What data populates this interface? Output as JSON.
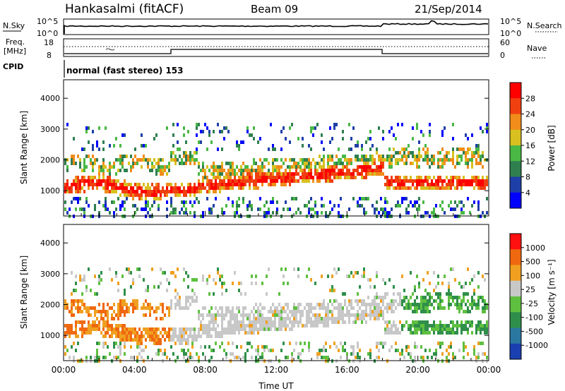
{
  "header": {
    "station": "Hankasalmi (fitACF)",
    "beam": "Beam 09",
    "date": "21/Sep/2014"
  },
  "noise_panel": {
    "left_label": "N.Sky",
    "right_label": "N.Search",
    "left_ticks": [
      "10^5",
      "10^0"
    ],
    "right_ticks": [
      "10^5",
      "10^0"
    ]
  },
  "freq_panel": {
    "left_label_1": "Freq.",
    "left_label_2": "[MHz]",
    "right_label": "Nave",
    "left_ticks": [
      "18",
      "8"
    ],
    "right_ticks": [
      "60",
      "0"
    ]
  },
  "cpid_panel": {
    "label": "CPID",
    "program": "normal (fast stereo) 153"
  },
  "chart_data": [
    {
      "type": "heatmap",
      "name": "power",
      "ylabel": "Slant Range [km]",
      "ylim": [
        180,
        4600
      ],
      "yticks": [
        "1000",
        "2000",
        "3000",
        "4000"
      ],
      "colorbar_label": "Power [dB]",
      "colorbar_ticks": [
        "28",
        "24",
        "20",
        "16",
        "12",
        "8",
        "4"
      ],
      "colors": [
        "#0000ff",
        "#1f3fa8",
        "#2f7f4f",
        "#49b845",
        "#d8c020",
        "#f08c1a",
        "#f04010",
        "#ff0000"
      ],
      "x_range_hours": [
        0,
        24
      ]
    },
    {
      "type": "heatmap",
      "name": "velocity",
      "ylabel": "Slant Range [km]",
      "ylim": [
        180,
        4600
      ],
      "yticks": [
        "1000",
        "2000",
        "3000",
        "4000"
      ],
      "xlabel": "Time UT",
      "xticks": [
        "00:00",
        "04:00",
        "08:00",
        "12:00",
        "16:00",
        "20:00",
        "00:00"
      ],
      "colorbar_label": "Velocity [m s⁻¹]",
      "colorbar_ticks": [
        "1000",
        "500",
        "100",
        "25",
        "-25",
        "-100",
        "-500",
        "-1000"
      ],
      "colors": [
        "#1a3fb0",
        "#2a78a0",
        "#2f8f4a",
        "#5fc040",
        "#c8c8c8",
        "#f0a020",
        "#f06810",
        "#ff1010"
      ],
      "x_range_hours": [
        0,
        24
      ]
    }
  ]
}
